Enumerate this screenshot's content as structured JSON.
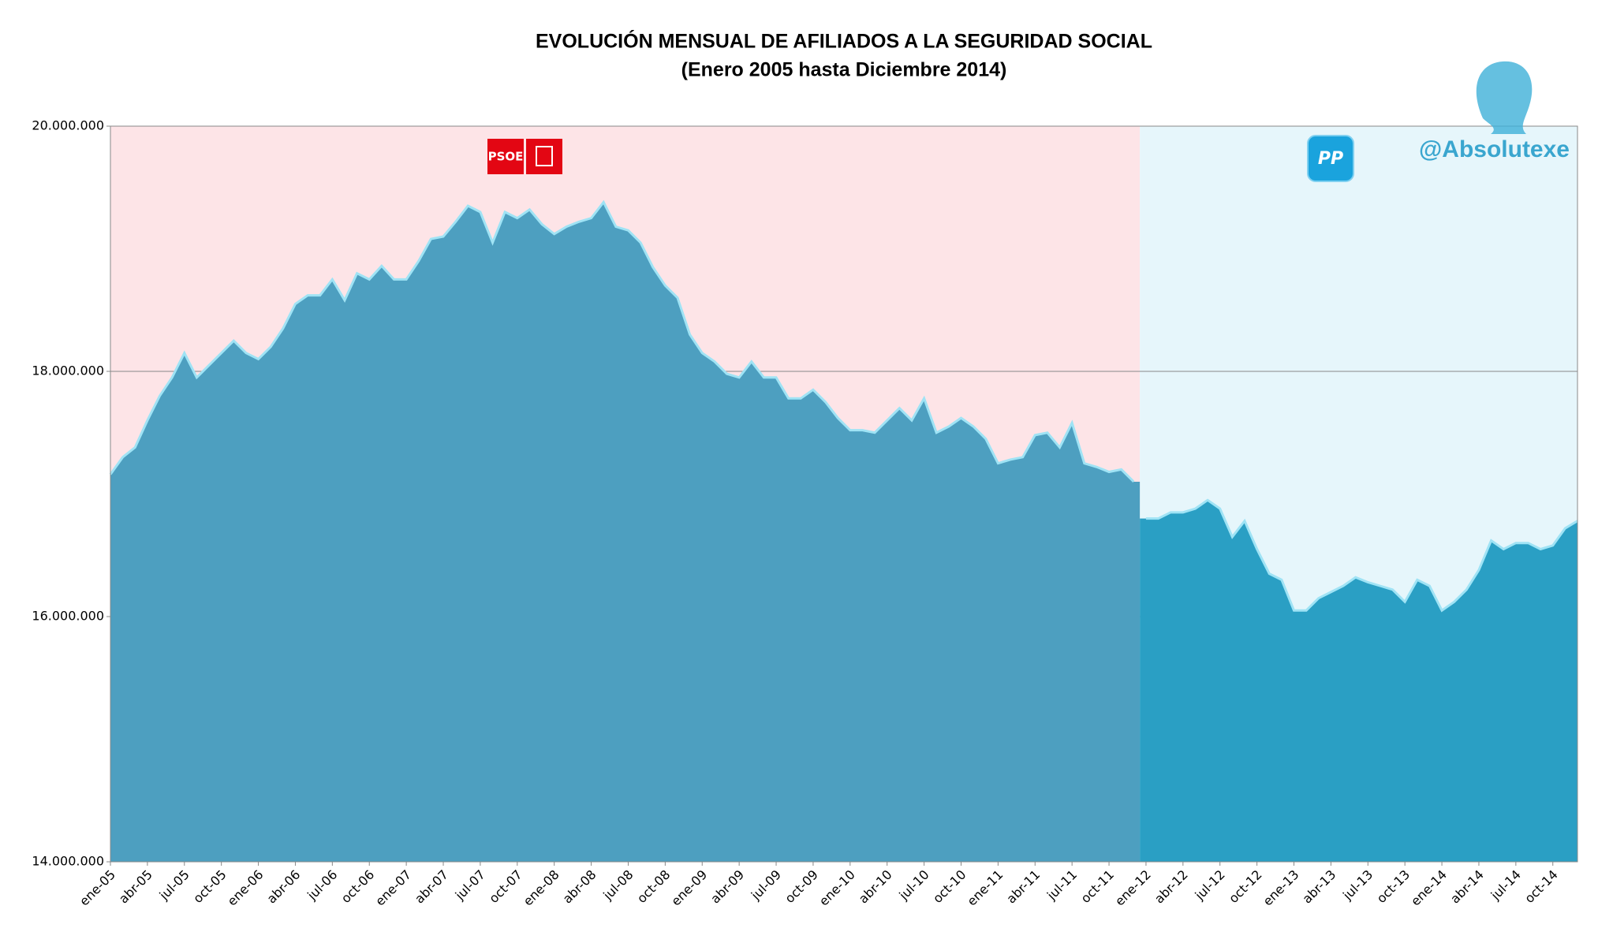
{
  "chart_data": {
    "type": "area",
    "title": "EVOLUCIÓN MENSUAL DE AFILIADOS A LA SEGURIDAD SOCIAL",
    "subtitle": "(Enero 2005 hasta Diciembre 2014)",
    "annotations": [
      "PSOE",
      "PP",
      "@Absolutexe"
    ],
    "categories": [
      "ene-05",
      null,
      null,
      "abr-05",
      null,
      null,
      "jul-05",
      null,
      null,
      "oct-05",
      null,
      null,
      "ene-06",
      null,
      null,
      "abr-06",
      null,
      null,
      "jul-06",
      null,
      null,
      "oct-06",
      null,
      null,
      "ene-07",
      null,
      null,
      "abr-07",
      null,
      null,
      "jul-07",
      null,
      null,
      "oct-07",
      null,
      null,
      "ene-08",
      null,
      null,
      "abr-08",
      null,
      null,
      "jul-08",
      null,
      null,
      "oct-08",
      null,
      null,
      "ene-09",
      null,
      null,
      "abr-09",
      null,
      null,
      "jul-09",
      null,
      null,
      "oct-09",
      null,
      null,
      "ene-10",
      null,
      null,
      "abr-10",
      null,
      null,
      "jul-10",
      null,
      null,
      "oct-10",
      null,
      null,
      "ene-11",
      null,
      null,
      "abr-11",
      null,
      null,
      "jul-11",
      null,
      null,
      "oct-11",
      null,
      null,
      "ene-12",
      null,
      null,
      "abr-12",
      null,
      null,
      "jul-12",
      null,
      null,
      "oct-12",
      null,
      null,
      "ene-13",
      null,
      null,
      "abr-13",
      null,
      null,
      "jul-13",
      null,
      null,
      "oct-13",
      null,
      null,
      "ene-14",
      null,
      null,
      "abr-14",
      null,
      null,
      "jul-14",
      null,
      null,
      "oct-14",
      null,
      null
    ],
    "series": [
      {
        "name": "PSOE",
        "color": "#4d9fc0",
        "background": "#fde4e7",
        "values": [
          17160000,
          17300000,
          17380000,
          17600000,
          17800000,
          17950000,
          18150000,
          17950000,
          18050000,
          18150000,
          18250000,
          18150000,
          18100000,
          18200000,
          18350000,
          18550000,
          18620000,
          18620000,
          18750000,
          18580000,
          18800000,
          18750000,
          18860000,
          18750000,
          18750000,
          18900000,
          19080000,
          19100000,
          19220000,
          19350000,
          19300000,
          19050000,
          19300000,
          19250000,
          19320000,
          19200000,
          19120000,
          19180000,
          19220000,
          19250000,
          19380000,
          19180000,
          19150000,
          19050000,
          18850000,
          18700000,
          18600000,
          18300000,
          18150000,
          18080000,
          17980000,
          17950000,
          18080000,
          17950000,
          17950000,
          17780000,
          17780000,
          17850000,
          17750000,
          17620000,
          17520000,
          17520000,
          17500000,
          17600000,
          17700000,
          17600000,
          17780000,
          17500000,
          17550000,
          17620000,
          17550000,
          17450000,
          17250000,
          17280000,
          17300000,
          17480000,
          17500000,
          17380000,
          17580000,
          17250000,
          17220000,
          17180000,
          17200000,
          17100000,
          null,
          null,
          null,
          null,
          null,
          null,
          null,
          null,
          null,
          null,
          null,
          null,
          null,
          null,
          null,
          null,
          null,
          null,
          null,
          null,
          null,
          null,
          null,
          null,
          null,
          null,
          null,
          null,
          null,
          null,
          null,
          null,
          null,
          null,
          null,
          null
        ]
      },
      {
        "name": "PP",
        "color": "#2a9fc4",
        "background": "#e6f6fb",
        "values": [
          null,
          null,
          null,
          null,
          null,
          null,
          null,
          null,
          null,
          null,
          null,
          null,
          null,
          null,
          null,
          null,
          null,
          null,
          null,
          null,
          null,
          null,
          null,
          null,
          null,
          null,
          null,
          null,
          null,
          null,
          null,
          null,
          null,
          null,
          null,
          null,
          null,
          null,
          null,
          null,
          null,
          null,
          null,
          null,
          null,
          null,
          null,
          null,
          null,
          null,
          null,
          null,
          null,
          null,
          null,
          null,
          null,
          null,
          null,
          null,
          null,
          null,
          null,
          null,
          null,
          null,
          null,
          null,
          null,
          null,
          null,
          null,
          null,
          null,
          null,
          null,
          null,
          null,
          null,
          null,
          null,
          null,
          null,
          null,
          16800000,
          16800000,
          16850000,
          16850000,
          16880000,
          16950000,
          16880000,
          16650000,
          16780000,
          16550000,
          16350000,
          16300000,
          16050000,
          16050000,
          16150000,
          16200000,
          16250000,
          16320000,
          16280000,
          16250000,
          16220000,
          16120000,
          16300000,
          16250000,
          16050000,
          16120000,
          16220000,
          16380000,
          16620000,
          16550000,
          16600000,
          16600000,
          16550000,
          16580000,
          16720000,
          16780000
        ]
      }
    ],
    "ylim": [
      14000000,
      20000000
    ],
    "yticks": [
      {
        "value": 14000000,
        "label": "14.000.000"
      },
      {
        "value": 16000000,
        "label": "16.000.000"
      },
      {
        "value": 18000000,
        "label": "18.000.000"
      },
      {
        "value": 20000000,
        "label": "20.000.000"
      }
    ],
    "grid": true
  }
}
